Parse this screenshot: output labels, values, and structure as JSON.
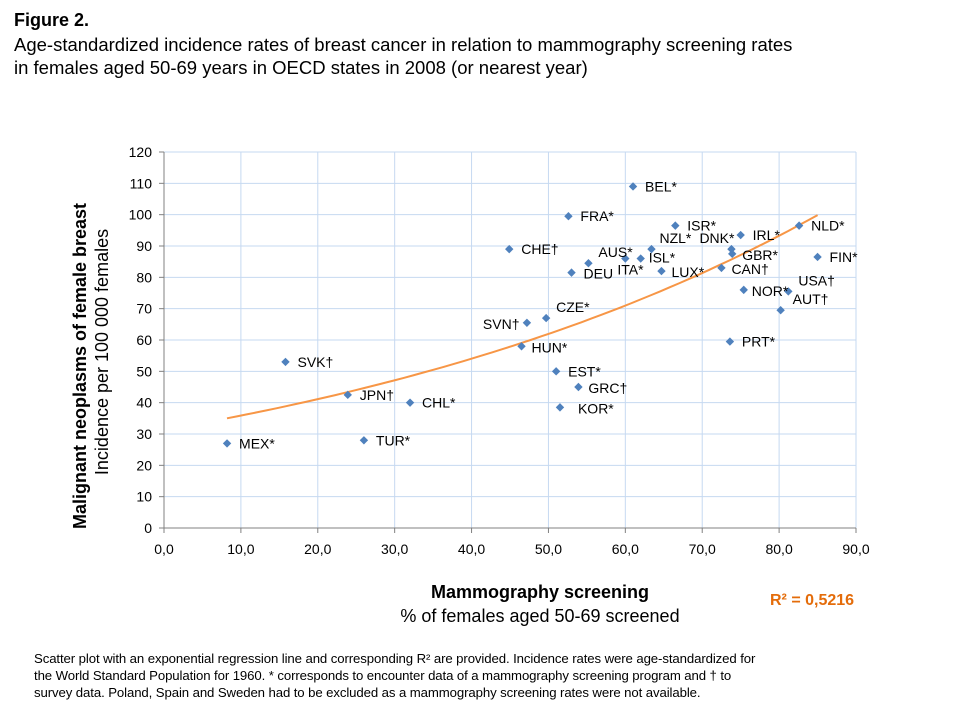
{
  "figure_label": "Figure 2.",
  "title_line1": "Age-standardized incidence rates of breast cancer in relation to mammography screening rates",
  "title_line2": "in females aged 50-69 years in OECD states in 2008 (or nearest year)",
  "caption_lines": [
    "Scatter plot with an exponential regression line and corresponding R² are provided. Incidence rates were age-standardized for",
    "the World Standard Population for 1960. * corresponds to encounter data of a mammography screening program and † to",
    "survey data. Poland, Spain and Sweden had to be excluded as a mammography screening rates were not available."
  ],
  "chart_data": {
    "type": "scatter",
    "xlabel_bold": "Mammography screening",
    "xlabel_sub": "% of females aged 50-69 screened",
    "ylabel_bold": "Malignant neoplasms of female breast",
    "ylabel_sub": "Incidence per 100 000 females",
    "xlim": [
      0,
      90
    ],
    "ylim": [
      0,
      120
    ],
    "xticks": [
      "0,0",
      "10,0",
      "20,0",
      "30,0",
      "40,0",
      "50,0",
      "60,0",
      "70,0",
      "80,0",
      "90,0"
    ],
    "yticks": [
      "0",
      "10",
      "20",
      "30",
      "40",
      "50",
      "60",
      "70",
      "80",
      "90",
      "100",
      "110",
      "120"
    ],
    "grid": true,
    "point_color": "#4f81bd",
    "trend_color": "#f79646",
    "r2_color": "#e46c0a",
    "r2_label": "R² = 0,5216",
    "trend": {
      "type": "exponential",
      "a": 31.3,
      "b": 0.01365,
      "x_range": [
        8.2,
        85.0
      ]
    },
    "points": [
      {
        "label": "MEX*",
        "x": 8.2,
        "y": 27.0
      },
      {
        "label": "SVK†",
        "x": 15.8,
        "y": 53.0
      },
      {
        "label": "JPN†",
        "x": 23.9,
        "y": 42.5
      },
      {
        "label": "TUR*",
        "x": 26.0,
        "y": 28.0
      },
      {
        "label": "CHL*",
        "x": 32.0,
        "y": 40.0
      },
      {
        "label": "CHE†",
        "x": 44.9,
        "y": 89.0
      },
      {
        "label": "HUN*",
        "x": 46.5,
        "y": 58.0
      },
      {
        "label": "SVN†",
        "x": 47.2,
        "y": 65.5
      },
      {
        "label": "CZE*",
        "x": 49.7,
        "y": 67.0
      },
      {
        "label": "EST*",
        "x": 51.0,
        "y": 50.0
      },
      {
        "label": "KOR*",
        "x": 51.5,
        "y": 38.5
      },
      {
        "label": "FRA*",
        "x": 52.6,
        "y": 99.5
      },
      {
        "label": "DEU",
        "x": 53.0,
        "y": 81.5
      },
      {
        "label": "GRC†",
        "x": 53.9,
        "y": 45.0
      },
      {
        "label": "AUS*",
        "x": 55.2,
        "y": 84.5
      },
      {
        "label": "ITA*",
        "x": 60.0,
        "y": 86.0
      },
      {
        "label": "BEL*",
        "x": 61.0,
        "y": 109.0
      },
      {
        "label": "ISL*",
        "x": 62.0,
        "y": 86.0
      },
      {
        "label": "NZL*",
        "x": 63.4,
        "y": 89.0
      },
      {
        "label": "LUX*",
        "x": 64.7,
        "y": 82.0
      },
      {
        "label": "ISR*",
        "x": 66.5,
        "y": 96.5
      },
      {
        "label": "CAN†",
        "x": 72.5,
        "y": 83.0
      },
      {
        "label": "PRT*",
        "x": 73.6,
        "y": 59.5
      },
      {
        "label": "DNK*",
        "x": 73.8,
        "y": 89.0
      },
      {
        "label": "GBR*",
        "x": 73.9,
        "y": 87.5
      },
      {
        "label": "IRL*",
        "x": 75.0,
        "y": 93.5
      },
      {
        "label": "NOR*",
        "x": 75.4,
        "y": 76.0
      },
      {
        "label": "AUT†",
        "x": 80.2,
        "y": 69.5
      },
      {
        "label": "USA†",
        "x": 81.2,
        "y": 75.5
      },
      {
        "label": "NLD*",
        "x": 82.6,
        "y": 96.5
      },
      {
        "label": "FIN*",
        "x": 85.0,
        "y": 86.5
      }
    ]
  }
}
